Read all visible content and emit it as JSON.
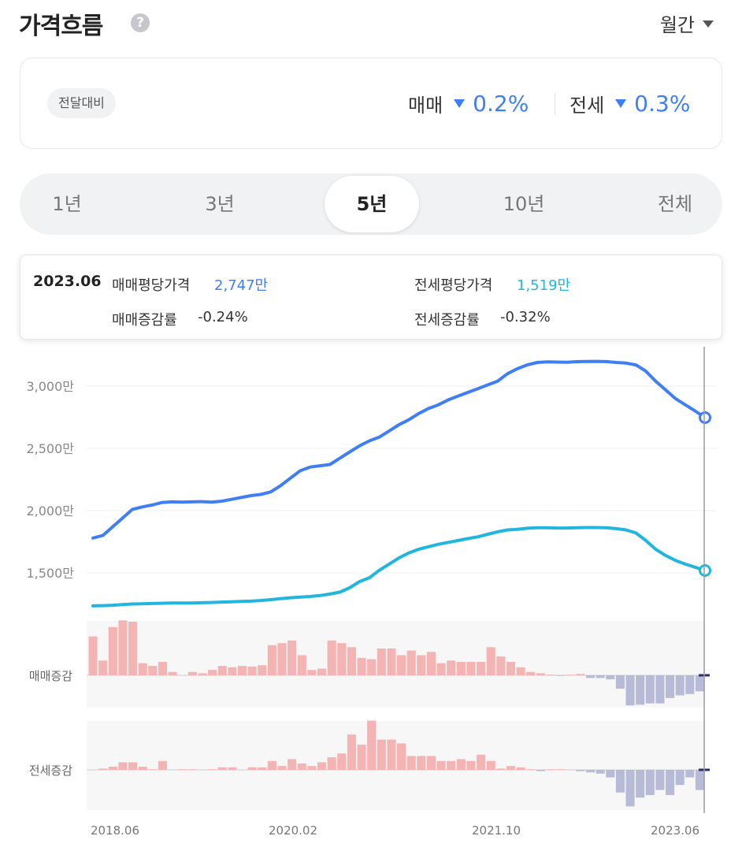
{
  "header": {
    "title": "가격흐름",
    "help_icon": "?",
    "period_select": "월간"
  },
  "summary": {
    "compare_label": "전달대비",
    "sale_label": "매매",
    "sale_change": "0.2%",
    "rent_label": "전세",
    "rent_change": "0.3%",
    "down_color": "#3f7ef5"
  },
  "tabs": [
    {
      "label": "1년",
      "active": false
    },
    {
      "label": "3년",
      "active": false
    },
    {
      "label": "5년",
      "active": true
    },
    {
      "label": "10년",
      "active": false
    },
    {
      "label": "전체",
      "active": false
    }
  ],
  "tooltip": {
    "date": "2023.06",
    "sale_price_label": "매매평당가격",
    "sale_price_value": "2,747만",
    "rent_price_label": "전세평당가격",
    "rent_price_value": "1,519만",
    "sale_change_label": "매매증감률",
    "sale_change_value": "-0.24%",
    "rent_change_label": "전세증감률",
    "rent_change_value": "-0.32%"
  },
  "chart_data": {
    "type": "line",
    "x_ticks": [
      "2018.06",
      "2020.02",
      "2021.10",
      "2023.06"
    ],
    "y_ticks": [
      "3,000만",
      "2,500만",
      "2,000만",
      "1,500만"
    ],
    "y_tick_values": [
      3000,
      2500,
      2000,
      1500
    ],
    "series": [
      {
        "color": "#3f7ef5",
        "values": [
          1780,
          1800,
          1870,
          1940,
          2010,
          2030,
          2045,
          2065,
          2070,
          2068,
          2070,
          2072,
          2068,
          2075,
          2090,
          2105,
          2120,
          2130,
          2150,
          2200,
          2260,
          2320,
          2350,
          2360,
          2370,
          2420,
          2470,
          2520,
          2560,
          2590,
          2640,
          2690,
          2730,
          2780,
          2820,
          2850,
          2890,
          2920,
          2950,
          2980,
          3010,
          3040,
          3100,
          3140,
          3170,
          3190,
          3195,
          3193,
          3192,
          3196,
          3198,
          3199,
          3197,
          3190,
          3185,
          3170,
          3120,
          3040,
          2970,
          2900,
          2850,
          2800,
          2747
        ]
      },
      {
        "color": "#21b6de",
        "values": [
          1235,
          1237,
          1240,
          1245,
          1250,
          1252,
          1254,
          1256,
          1258,
          1258,
          1258,
          1260,
          1262,
          1265,
          1268,
          1270,
          1273,
          1278,
          1285,
          1293,
          1300,
          1305,
          1310,
          1318,
          1330,
          1345,
          1380,
          1430,
          1460,
          1520,
          1570,
          1620,
          1660,
          1690,
          1710,
          1730,
          1745,
          1760,
          1775,
          1790,
          1810,
          1830,
          1845,
          1850,
          1858,
          1862,
          1862,
          1860,
          1860,
          1862,
          1864,
          1864,
          1862,
          1855,
          1845,
          1820,
          1760,
          1690,
          1640,
          1600,
          1570,
          1545,
          1519
        ]
      }
    ],
    "sale_change_label": "매매증감",
    "rent_change_label": "전세증감",
    "sale_change_series": [
      0.58,
      0.22,
      0.72,
      0.82,
      0.8,
      0.18,
      0.14,
      0.2,
      0.05,
      0,
      0.05,
      0.03,
      0.08,
      0.14,
      0.12,
      0.14,
      0.13,
      0.15,
      0.45,
      0.48,
      0.52,
      0.3,
      0.08,
      0.1,
      0.52,
      0.48,
      0.42,
      0.26,
      0.24,
      0.4,
      0.4,
      0.3,
      0.37,
      0.3,
      0.35,
      0.18,
      0.22,
      0.2,
      0.2,
      0.2,
      0.42,
      0.28,
      0.2,
      0.12,
      0.05,
      0.03,
      0.01,
      -0.01,
      0.01,
      0.02,
      -0.04,
      -0.04,
      -0.06,
      -0.2,
      -0.45,
      -0.44,
      -0.42,
      -0.42,
      -0.34,
      -0.3,
      -0.28,
      -0.24
    ],
    "rent_change_series": [
      0,
      0.02,
      0.05,
      0.12,
      0.12,
      0.05,
      0.01,
      0.14,
      0,
      0.01,
      0.01,
      0,
      0.01,
      0.04,
      0.04,
      0,
      0.04,
      0.04,
      0.14,
      0.06,
      0.17,
      0.1,
      0.06,
      0.12,
      0.2,
      0.26,
      0.56,
      0.4,
      0.78,
      0.48,
      0.48,
      0.42,
      0.22,
      0.22,
      0.22,
      0.14,
      0.14,
      0.17,
      0.14,
      0.24,
      0.14,
      0.02,
      0.06,
      0.04,
      0.01,
      -0.02,
      0.01,
      0.01,
      0,
      -0.02,
      -0.04,
      -0.06,
      -0.12,
      -0.36,
      -0.58,
      -0.44,
      -0.4,
      -0.32,
      -0.4,
      -0.24,
      -0.12,
      -0.32
    ],
    "up_color": "#f4b4b4",
    "down_color": "#b8bbd8"
  }
}
